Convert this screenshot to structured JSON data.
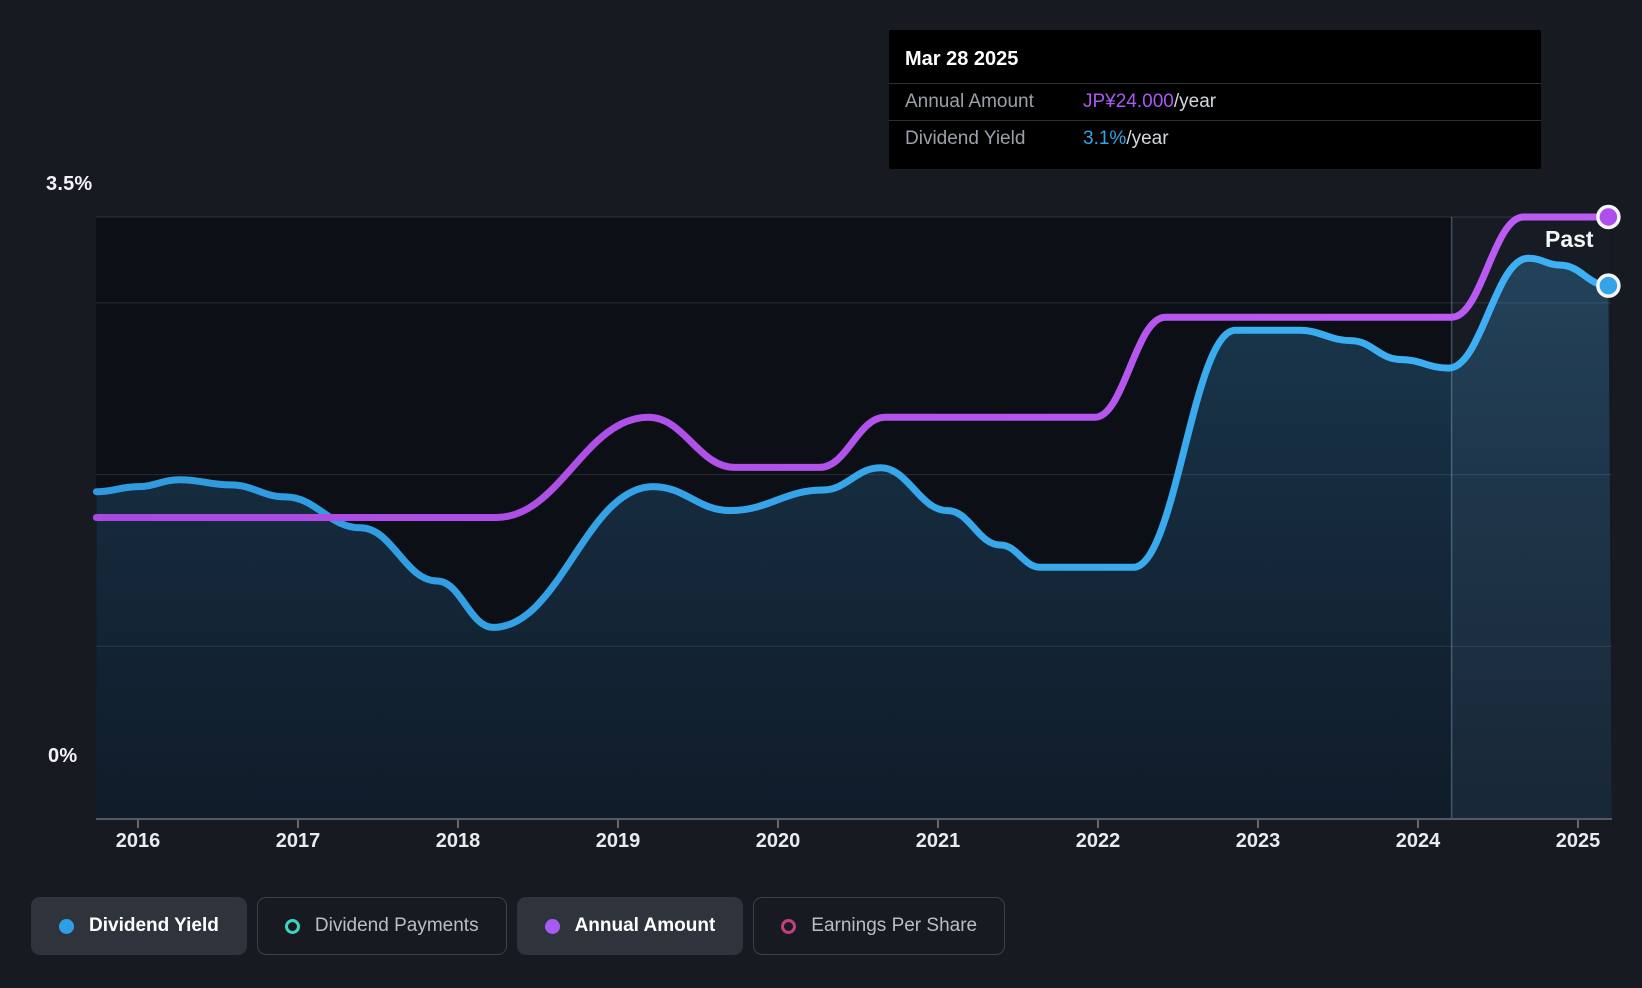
{
  "page": {
    "background": "#171a21",
    "plot_background": "#0c0f15"
  },
  "tooltip": {
    "date": "Mar 28 2025",
    "rows": [
      {
        "label": "Annual Amount",
        "value": "JP¥24.000",
        "suffix": "/year",
        "color": "#a958f2"
      },
      {
        "label": "Dividend Yield",
        "value": "3.1%",
        "suffix": "/year",
        "color": "#35a3e8"
      }
    ]
  },
  "chart_data": {
    "type": "area",
    "past_label": "Past",
    "x_ticks": [
      "2016",
      "2017",
      "2018",
      "2019",
      "2020",
      "2021",
      "2022",
      "2023",
      "2024",
      "2025"
    ],
    "x_range": [
      2015.74,
      2025.21
    ],
    "y_axis": {
      "unit": "%",
      "min": 0,
      "max": 3.5,
      "min_label": "0%",
      "max_label": "3.5%",
      "grid_values": [
        3.5,
        3.0,
        2.0,
        1.0
      ]
    },
    "y_axis_secondary": {
      "unit": "JP¥",
      "min": 0,
      "max": 24
    },
    "highlight_band": {
      "from": 2024.21,
      "to": 2025.21
    },
    "series": [
      {
        "name": "Dividend Yield",
        "unit": "%",
        "color_start": "#2f9ade",
        "color_end": "#3eb1f4",
        "color": "#35a3e8",
        "fill": true,
        "points": [
          [
            2015.74,
            1.9
          ],
          [
            2016.0,
            1.93
          ],
          [
            2016.26,
            1.97
          ],
          [
            2016.58,
            1.94
          ],
          [
            2016.92,
            1.87
          ],
          [
            2017.39,
            1.69
          ],
          [
            2017.87,
            1.38
          ],
          [
            2018.22,
            1.11
          ],
          [
            2019.22,
            1.93
          ],
          [
            2019.7,
            1.79
          ],
          [
            2020.28,
            1.91
          ],
          [
            2020.64,
            2.04
          ],
          [
            2021.06,
            1.79
          ],
          [
            2021.39,
            1.59
          ],
          [
            2021.64,
            1.46
          ],
          [
            2022.22,
            1.46
          ],
          [
            2022.86,
            2.84
          ],
          [
            2023.26,
            2.84
          ],
          [
            2023.58,
            2.78
          ],
          [
            2023.89,
            2.67
          ],
          [
            2024.19,
            2.62
          ],
          [
            2024.69,
            3.26
          ],
          [
            2024.89,
            3.22
          ],
          [
            2025.19,
            3.1
          ]
        ]
      },
      {
        "name": "Annual Amount",
        "unit": "JP¥",
        "color_start": "#a84ae0",
        "color_end": "#bb5cf5",
        "color": "#b04eec",
        "fill": false,
        "points": [
          [
            2015.74,
            12
          ],
          [
            2018.24,
            12
          ],
          [
            2019.19,
            16
          ],
          [
            2019.73,
            14
          ],
          [
            2020.26,
            14
          ],
          [
            2020.67,
            16
          ],
          [
            2021.98,
            16
          ],
          [
            2022.42,
            20
          ],
          [
            2024.21,
            20
          ],
          [
            2024.66,
            24
          ],
          [
            2025.19,
            24
          ]
        ]
      }
    ]
  },
  "legend": {
    "items": [
      {
        "label": "Dividend Yield",
        "color": "#2d9fe6",
        "swatch": "dot",
        "active": true
      },
      {
        "label": "Dividend Payments",
        "color": "#3ed3c0",
        "swatch": "ring",
        "active": false
      },
      {
        "label": "Annual Amount",
        "color": "#a65bf2",
        "swatch": "dot",
        "active": true
      },
      {
        "label": "Earnings Per Share",
        "color": "#c0417f",
        "swatch": "ring",
        "active": false
      }
    ]
  }
}
